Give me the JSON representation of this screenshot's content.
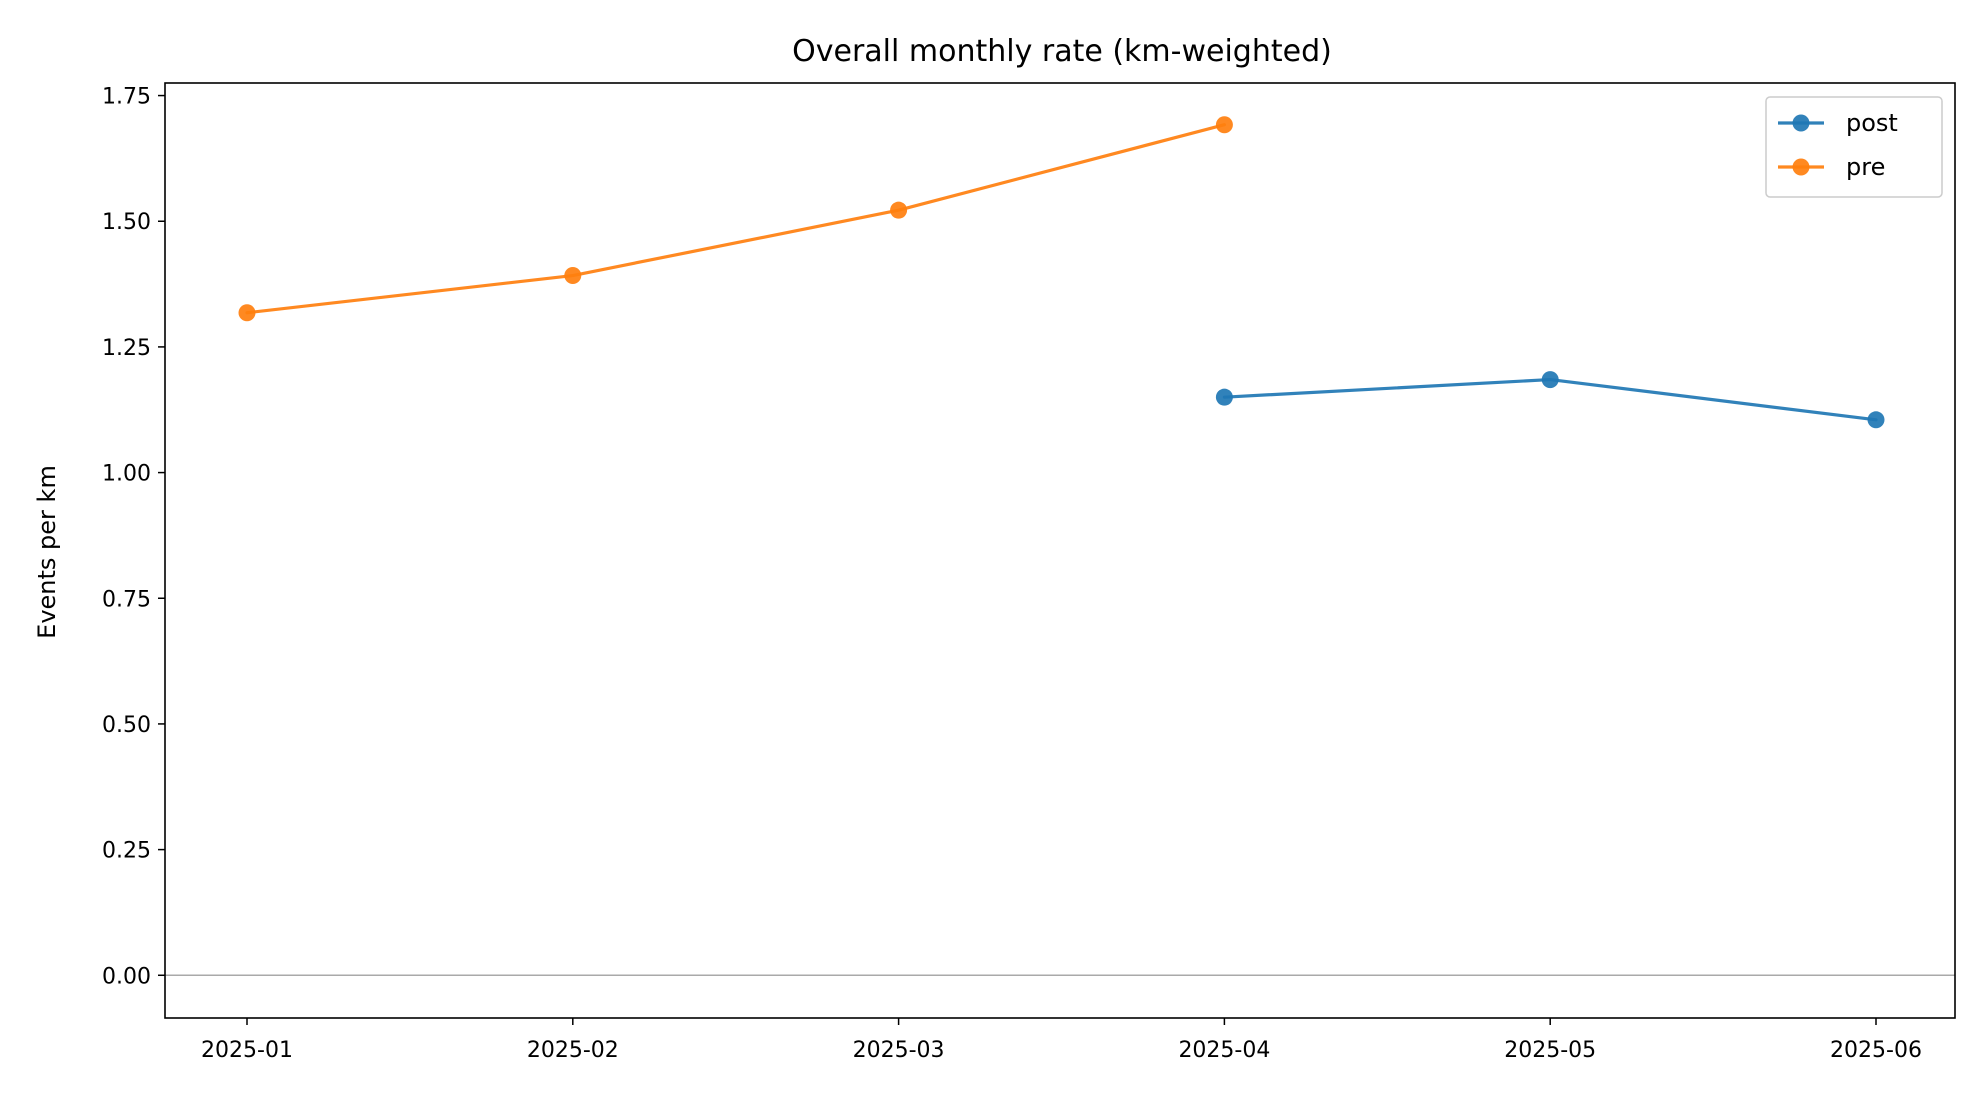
{
  "chart_data": {
    "type": "line",
    "title": "Overall monthly rate (km-weighted)",
    "xlabel": "",
    "ylabel": "Events per km",
    "categories": [
      "2025-01",
      "2025-02",
      "2025-03",
      "2025-04",
      "2025-05",
      "2025-06"
    ],
    "x_axis": "date",
    "ylim": [
      -0.085,
      1.775
    ],
    "yticks": [
      0.0,
      0.25,
      0.5,
      0.75,
      1.0,
      1.25,
      1.5,
      1.75
    ],
    "ytick_labels": [
      "0.00",
      "0.25",
      "0.50",
      "0.75",
      "1.00",
      "1.25",
      "1.50",
      "1.75"
    ],
    "grid": false,
    "reference_line_y": 0,
    "legend_position": "top-right",
    "series": [
      {
        "name": "post",
        "color": "#1f77b4",
        "marker": "circle",
        "points": [
          {
            "x": "2025-04",
            "y": 1.15
          },
          {
            "x": "2025-05",
            "y": 1.185
          },
          {
            "x": "2025-06",
            "y": 1.105
          }
        ]
      },
      {
        "name": "pre",
        "color": "#ff7f0e",
        "marker": "circle",
        "points": [
          {
            "x": "2025-01",
            "y": 1.318
          },
          {
            "x": "2025-02",
            "y": 1.392
          },
          {
            "x": "2025-03",
            "y": 1.522
          },
          {
            "x": "2025-04",
            "y": 1.692
          }
        ]
      }
    ]
  }
}
